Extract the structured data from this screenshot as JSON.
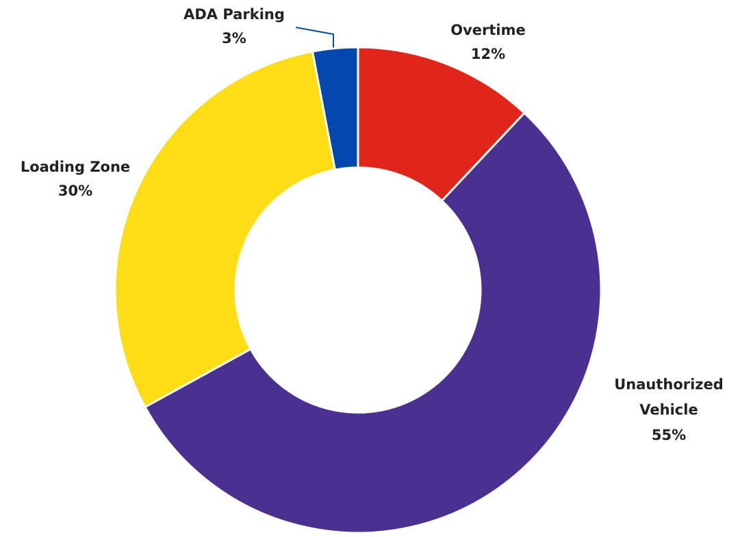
{
  "chart_data": {
    "type": "donut",
    "categories": [
      "Overtime",
      "Unauthorized Vehicle",
      "Loading Zone",
      "ADA Parking"
    ],
    "values": [
      12,
      55,
      30,
      3
    ],
    "value_labels": [
      "12%",
      "55%",
      "30%",
      "3%"
    ],
    "colors": [
      "#e0251b",
      "#4a3091",
      "#fedd17",
      "#0448ad"
    ]
  }
}
